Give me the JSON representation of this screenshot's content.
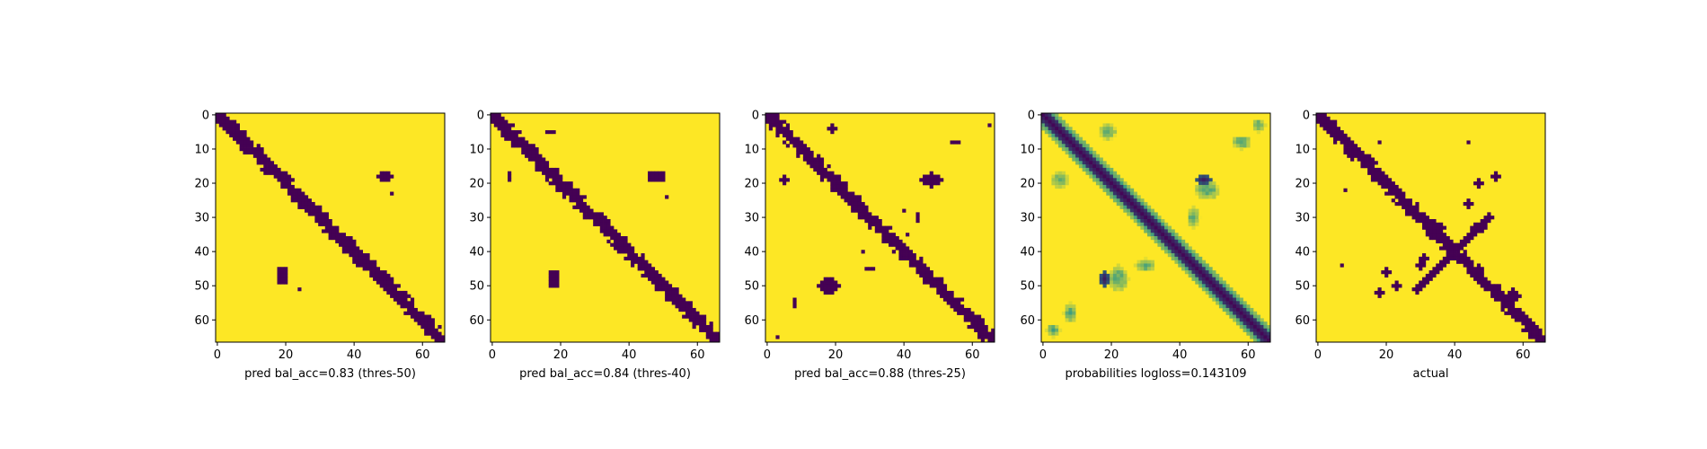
{
  "chart_data": {
    "type": "heatmap",
    "matrix_size": 67,
    "colormap": {
      "name": "viridis",
      "low": "#440154",
      "mid": "#21918c",
      "high": "#fde725"
    },
    "x_ticks": [
      0,
      20,
      40,
      60
    ],
    "y_ticks": [
      0,
      10,
      20,
      30,
      40,
      50,
      60
    ],
    "xlim": [
      0,
      66
    ],
    "ylim": [
      66,
      0
    ],
    "panels": [
      {
        "title": "",
        "xlabel": "pred bal_acc=0.83 (thres-50)",
        "kind": "binary",
        "diagonal_half_width": 2,
        "blobs": [
          {
            "x": 49,
            "y": 18,
            "rx": 2.5,
            "ry": 1.5
          },
          {
            "x": 19,
            "y": 47,
            "rx": 1.8,
            "ry": 2.5
          },
          {
            "x": 35,
            "y": 36,
            "rx": 0.6,
            "ry": 0.6
          },
          {
            "x": 24,
            "y": 51,
            "rx": 0.6,
            "ry": 0.6
          },
          {
            "x": 51,
            "y": 23,
            "rx": 0.6,
            "ry": 0.6
          }
        ]
      },
      {
        "title": "",
        "xlabel": "pred bal_acc=0.84 (thres-40)",
        "kind": "binary",
        "diagonal_half_width": 2,
        "blobs": [
          {
            "x": 48,
            "y": 18,
            "rx": 2.5,
            "ry": 1.8
          },
          {
            "x": 18,
            "y": 48,
            "rx": 1.8,
            "ry": 2.5
          },
          {
            "x": 17,
            "y": 5,
            "rx": 1.0,
            "ry": 0.6
          },
          {
            "x": 5,
            "y": 18,
            "rx": 0.6,
            "ry": 1.0
          },
          {
            "x": 33,
            "y": 35,
            "rx": 0.6,
            "ry": 0.6
          },
          {
            "x": 51,
            "y": 24,
            "rx": 0.6,
            "ry": 0.6
          }
        ]
      },
      {
        "title": "",
        "xlabel": "pred bal_acc=0.88 (thres-25)",
        "kind": "binary",
        "diagonal_half_width": 2,
        "blobs": [
          {
            "x": 48,
            "y": 19,
            "rx": 3.0,
            "ry": 2.0
          },
          {
            "x": 18,
            "y": 50,
            "rx": 3.0,
            "ry": 2.5
          },
          {
            "x": 19,
            "y": 4,
            "rx": 1.0,
            "ry": 1.2
          },
          {
            "x": 5,
            "y": 19,
            "rx": 1.2,
            "ry": 1.0
          },
          {
            "x": 55,
            "y": 8,
            "rx": 1.5,
            "ry": 0.8
          },
          {
            "x": 8,
            "y": 55,
            "rx": 0.8,
            "ry": 1.5
          },
          {
            "x": 30,
            "y": 45,
            "rx": 1.5,
            "ry": 0.8
          },
          {
            "x": 44,
            "y": 30,
            "rx": 0.8,
            "ry": 1.5
          },
          {
            "x": 41,
            "y": 35,
            "rx": 0.8,
            "ry": 0.8
          },
          {
            "x": 3,
            "y": 65,
            "rx": 0.6,
            "ry": 0.6
          },
          {
            "x": 65,
            "y": 3,
            "rx": 0.6,
            "ry": 0.6
          },
          {
            "x": 40,
            "y": 28,
            "rx": 0.6,
            "ry": 0.6
          },
          {
            "x": 28,
            "y": 40,
            "rx": 0.6,
            "ry": 0.6
          }
        ]
      },
      {
        "title": "",
        "xlabel": "probabilities logloss=0.143109",
        "kind": "continuous",
        "diagonal_half_width": 2,
        "blobs": [
          {
            "x": 47,
            "y": 19,
            "rx": 2.5,
            "ry": 1.5
          },
          {
            "x": 18,
            "y": 48,
            "rx": 1.5,
            "ry": 2.5
          },
          {
            "x": 40,
            "y": 40,
            "rx": 0.8,
            "ry": 0.8
          }
        ],
        "haze": [
          {
            "x": 5,
            "y": 19,
            "rx": 2.5,
            "ry": 2.5
          },
          {
            "x": 19,
            "y": 5,
            "rx": 2.5,
            "ry": 2.5
          },
          {
            "x": 58,
            "y": 8,
            "rx": 3.0,
            "ry": 2.0
          },
          {
            "x": 8,
            "y": 58,
            "rx": 2.0,
            "ry": 3.0
          },
          {
            "x": 48,
            "y": 22,
            "rx": 4.0,
            "ry": 3.0
          },
          {
            "x": 22,
            "y": 48,
            "rx": 3.0,
            "ry": 4.0
          },
          {
            "x": 30,
            "y": 44,
            "rx": 3.0,
            "ry": 2.0
          },
          {
            "x": 44,
            "y": 30,
            "rx": 2.0,
            "ry": 3.0
          },
          {
            "x": 3,
            "y": 63,
            "rx": 2.0,
            "ry": 2.0
          },
          {
            "x": 63,
            "y": 3,
            "rx": 2.0,
            "ry": 2.0
          }
        ]
      },
      {
        "title": "",
        "xlabel": "actual",
        "kind": "binary",
        "diagonal_half_width": 2,
        "blobs": [
          {
            "x": 18,
            "y": 8,
            "rx": 0.6,
            "ry": 0.6
          },
          {
            "x": 44,
            "y": 8,
            "rx": 0.6,
            "ry": 0.6
          },
          {
            "x": 8,
            "y": 22,
            "rx": 0.6,
            "ry": 0.6
          },
          {
            "x": 7,
            "y": 44,
            "rx": 0.6,
            "ry": 0.6
          },
          {
            "x": 47,
            "y": 20,
            "rx": 1.5,
            "ry": 1.0
          },
          {
            "x": 52,
            "y": 18,
            "rx": 1.5,
            "ry": 1.0
          },
          {
            "x": 44,
            "y": 26,
            "rx": 1.0,
            "ry": 1.0
          },
          {
            "x": 20,
            "y": 46,
            "rx": 1.0,
            "ry": 1.0
          },
          {
            "x": 23,
            "y": 50,
            "rx": 1.0,
            "ry": 1.0
          },
          {
            "x": 18,
            "y": 52,
            "rx": 1.0,
            "ry": 1.0
          },
          {
            "x": 30,
            "y": 44,
            "rx": 1.0,
            "ry": 1.0
          },
          {
            "x": 17,
            "y": 18,
            "rx": 1.5,
            "ry": 1.5
          },
          {
            "x": 57,
            "y": 53,
            "rx": 2.0,
            "ry": 2.0
          },
          {
            "x": 35,
            "y": 33,
            "rx": 2.5,
            "ry": 1.5
          },
          {
            "x": 47,
            "y": 33,
            "rx": 2.0,
            "ry": 1.5
          },
          {
            "x": 31,
            "y": 42,
            "rx": 1.0,
            "ry": 1.0
          }
        ],
        "anti_diagonal": {
          "from": [
            29,
            51
          ],
          "to": [
            50,
            30
          ],
          "half_width": 1.2
        }
      }
    ]
  }
}
